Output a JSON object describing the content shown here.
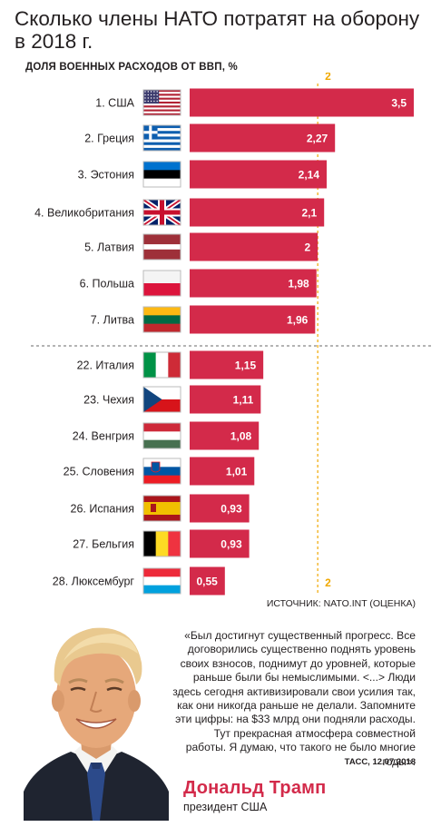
{
  "title": "Сколько члены НАТО потратят на оборону в 2018 г.",
  "subtitle": "ДОЛЯ ВОЕННЫХ РАСХОДОВ ОТ ВВП, %",
  "source": "ИСТОЧНИК: NATO.INT (ОЦЕНКА)",
  "colors": {
    "bar": "#d32a4a",
    "reference": "#f0a800",
    "separator": "#888888"
  },
  "chart_data": {
    "type": "bar",
    "orientation": "horizontal",
    "categories": [
      "1. США",
      "2. Греция",
      "3. Эстония",
      "4. Великобритания",
      "5. Латвия",
      "6. Польша",
      "7. Литва",
      "22. Италия",
      "23. Чехия",
      "24. Венгрия",
      "25. Словения",
      "26. Испания",
      "27. Бельгия",
      "28. Люксембург"
    ],
    "values": [
      3.5,
      2.27,
      2.14,
      2.1,
      2,
      1.98,
      1.96,
      1.15,
      1.11,
      1.08,
      1.01,
      0.93,
      0.93,
      0.55
    ],
    "value_labels": [
      "3,5",
      "2,27",
      "2,14",
      "2,1",
      "2",
      "1,98",
      "1,96",
      "1,15",
      "1,11",
      "1,08",
      "1,01",
      "0,93",
      "0,93",
      "0,55"
    ],
    "flags": [
      "flag-usa-icon",
      "flag-greece-icon",
      "flag-estonia-icon",
      "flag-uk-icon",
      "flag-latvia-icon",
      "flag-poland-icon",
      "flag-lithuania-icon",
      "flag-italy-icon",
      "flag-czechia-icon",
      "flag-hungary-icon",
      "flag-slovenia-icon",
      "flag-spain-icon",
      "flag-belgium-icon",
      "flag-luxembourg-icon"
    ],
    "reference_line": {
      "value": 2,
      "label": "2"
    },
    "separator_after_index": 6,
    "xlim": [
      0,
      3.5
    ]
  },
  "quote": {
    "text": "«Был достигнут существенный прогресс. Все договорились существенно поднять уровень своих взносов, поднимут до уровней, которые раньше были бы немыслимыми. <...> Люди здесь сегодня активизировали свои усилия так, как они никогда раньше не делали. Запомните эти цифры: на $33 млрд они подняли расходы. Тут прекрасная атмосфера совместной работы. Я думаю, что такого не было многие годы».",
    "source": "ТАСС, 12.07.2018"
  },
  "person": {
    "name": "Дональд Трамп",
    "role": "президент США",
    "portrait": "portrait-icon"
  }
}
